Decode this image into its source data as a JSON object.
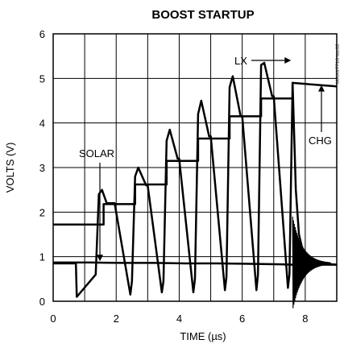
{
  "chart_data": {
    "type": "line",
    "title": "BOOST STARTUP",
    "xlabel": "TIME (µs)",
    "ylabel": "VOLTS (V)",
    "xlim": [
      0,
      9
    ],
    "ylim": [
      0,
      6
    ],
    "x_ticks": [
      "0",
      "2",
      "4",
      "6",
      "8"
    ],
    "y_ticks": [
      "0",
      "1",
      "2",
      "3",
      "4",
      "5",
      "6"
    ],
    "grid": true,
    "part_number": "MAX17710 toc02",
    "annotations": [
      "SOLAR",
      "LX",
      "CHG"
    ],
    "series": [
      {
        "name": "SOLAR",
        "x": [
          0,
          1.2,
          2.2,
          3.2,
          4.2,
          5.2,
          6.2,
          7.2,
          7.6,
          8.0,
          9.0
        ],
        "y": [
          0.87,
          0.87,
          0.86,
          0.86,
          0.85,
          0.85,
          0.84,
          0.83,
          0.82,
          0.82,
          0.82
        ]
      },
      {
        "name": "LX",
        "x": [
          0,
          0.72,
          0.75,
          1.35,
          1.45,
          1.55,
          1.7,
          1.9,
          1.95,
          2.45,
          2.5,
          2.6,
          2.7,
          2.95,
          3.0,
          3.45,
          3.5,
          3.6,
          3.7,
          3.95,
          4.0,
          4.45,
          4.5,
          4.6,
          4.7,
          4.95,
          5.0,
          5.45,
          5.5,
          5.6,
          5.7,
          5.95,
          6.0,
          6.45,
          6.5,
          6.6,
          6.7,
          6.95,
          7.0,
          7.45,
          7.5,
          7.6,
          7.7,
          7.8,
          8.0,
          8.5,
          9.0
        ],
        "y": [
          0.85,
          0.85,
          0.1,
          0.6,
          2.4,
          2.5,
          2.2,
          2.2,
          2.2,
          0.15,
          0.45,
          2.8,
          3.0,
          2.6,
          2.6,
          0.2,
          0.45,
          3.6,
          3.85,
          3.2,
          3.2,
          0.2,
          0.5,
          4.2,
          4.5,
          3.7,
          3.7,
          0.25,
          0.55,
          4.8,
          5.05,
          4.15,
          4.15,
          0.25,
          0.6,
          5.3,
          5.35,
          4.6,
          4.6,
          0.3,
          0.6,
          4.9,
          2.5,
          1.5,
          0.9,
          0.85,
          0.82
        ]
      },
      {
        "name": "CHG",
        "x": [
          0,
          1.6,
          1.6,
          2.6,
          2.6,
          3.6,
          3.6,
          4.6,
          4.6,
          5.6,
          5.6,
          6.6,
          6.6,
          7.6,
          7.6,
          9.0
        ],
        "y": [
          1.72,
          1.72,
          2.18,
          2.18,
          2.62,
          2.62,
          3.15,
          3.15,
          3.65,
          3.65,
          4.15,
          4.15,
          4.55,
          4.55,
          4.9,
          4.82
        ]
      }
    ]
  }
}
